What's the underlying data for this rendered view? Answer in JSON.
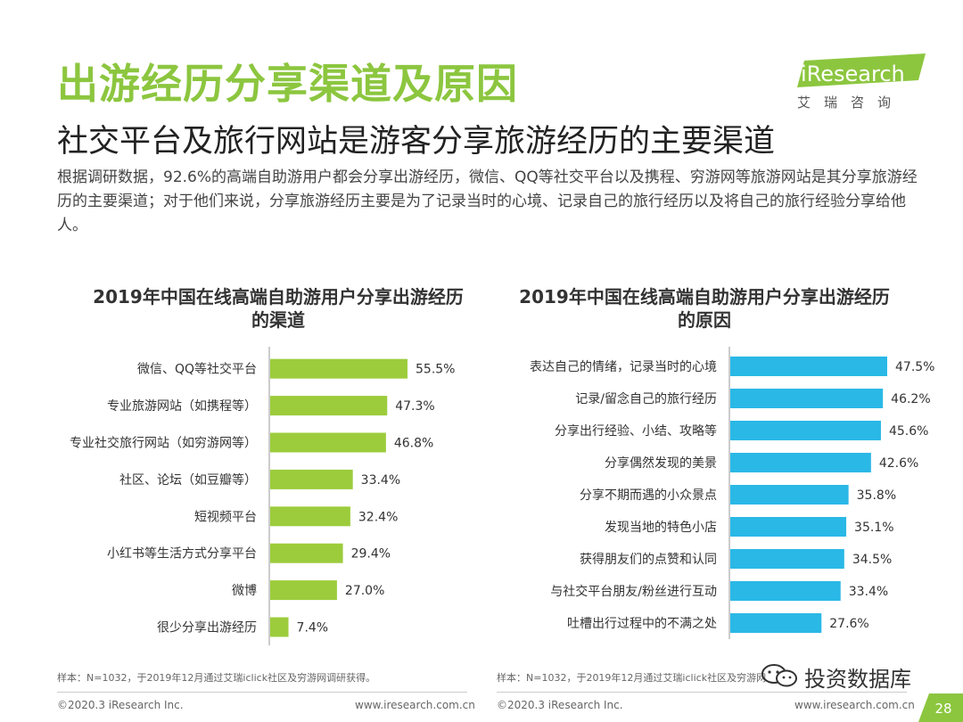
{
  "header": {
    "title": "出游经历分享渠道及原因",
    "subtitle": "社交平台及旅行网站是游客分享旅游经历的主要渠道",
    "description": "根据调研数据，92.6%的高端自助游用户都会分享出游经历，微信、QQ等社交平台以及携程、穷游网等旅游网站是其分享旅游经历的主要渠道；对于他们来说，分享旅游经历主要是为了记录当时的心境、记录自己的旅行经历以及将自己的旅行经验分享给他人。"
  },
  "logo": {
    "brand": "iResearch",
    "cn": "艾瑞咨询"
  },
  "chart_data": [
    {
      "type": "bar",
      "orientation": "horizontal",
      "title": "2019年中国在线高端自助游用户分享出游经历的渠道",
      "title_lines": [
        "2019年中国在线高端自助游用户分享出游经历",
        "的渠道"
      ],
      "categories": [
        "微信、QQ等社交平台",
        "专业旅游网站（如携程等）",
        "专业社交旅行网站（如穷游网等）",
        "社区、论坛（如豆瓣等）",
        "短视频平台",
        "小红书等生活方式分享平台",
        "微博",
        "很少分享出游经历"
      ],
      "values": [
        55.5,
        47.3,
        46.8,
        33.4,
        32.4,
        29.4,
        27.0,
        7.4
      ],
      "labels": [
        "55.5%",
        "47.3%",
        "46.8%",
        "33.4%",
        "32.4%",
        "29.4%",
        "27.0%",
        "7.4%"
      ],
      "unit": "%",
      "color": "#9ccc3c",
      "xlim": [
        0,
        60
      ]
    },
    {
      "type": "bar",
      "orientation": "horizontal",
      "title": "2019年中国在线高端自助游用户分享出游经历的原因",
      "title_lines": [
        "2019年中国在线高端自助游用户分享出游经历",
        "的原因"
      ],
      "categories": [
        "表达自己的情绪，记录当时的心境",
        "记录/留念自己的旅行经历",
        "分享出行经验、小结、攻略等",
        "分享偶然发现的美景",
        "分享不期而遇的小众景点",
        "发现当地的特色小店",
        "获得朋友们的点赞和认同",
        "与社交平台朋友/粉丝进行互动",
        "吐槽出行过程中的不满之处"
      ],
      "values": [
        47.5,
        46.2,
        45.6,
        42.6,
        35.8,
        35.1,
        34.5,
        33.4,
        27.6
      ],
      "labels": [
        "47.5%",
        "46.2%",
        "45.6%",
        "42.6%",
        "35.8%",
        "35.1%",
        "34.5%",
        "33.4%",
        "27.6%"
      ],
      "unit": "%",
      "color": "#2ab8e6",
      "xlim": [
        0,
        52
      ]
    }
  ],
  "notes": {
    "left": "样本：N=1032，于2019年12月通过艾瑞iclick社区及穷游网调研获得。",
    "right": "样本：N=1032，于2019年12月通过艾瑞iclick社区及穷游网"
  },
  "footer": {
    "copyright_left": "©2020.3 iResearch Inc.",
    "url_left": "www.iresearch.com.cn",
    "copyright_right": "©2020.3 iResearch Inc.",
    "url_right": "www.iresearch.com.cn",
    "page": "28"
  },
  "watermark": "投资数据库",
  "colors": {
    "accent": "#8cc63f",
    "green_bar": "#9ccc3c",
    "blue_bar": "#2ab8e6",
    "logo_bg": "#8cc63f"
  }
}
